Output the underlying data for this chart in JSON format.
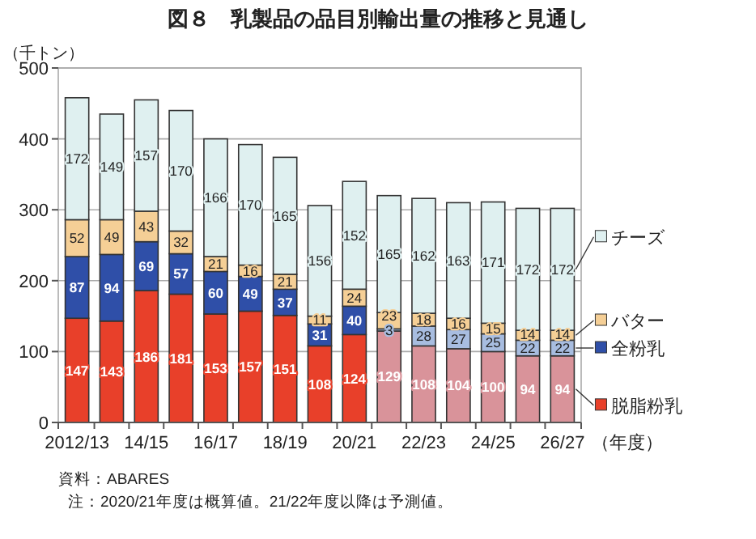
{
  "chart_data": {
    "type": "bar",
    "stacked": true,
    "title": "図８　乳製品の品目別輸出量の推移と見通し",
    "ylabel": "（千トン）",
    "xlabel": "（年度）",
    "categories": [
      "2012/13",
      null,
      "14/15",
      null,
      "16/17",
      null,
      "18/19",
      null,
      "20/21",
      null,
      "22/23",
      null,
      "24/25",
      null,
      "26/27"
    ],
    "series": [
      {
        "name": "脱脂粉乳",
        "color": "#e8402a",
        "colors": [
          "#e8402a",
          "#e8402a",
          "#e8402a",
          "#e8402a",
          "#e8402a",
          "#e8402a",
          "#e8402a",
          "#e8402a",
          "#e8402a",
          "#d9939a",
          "#d9939a",
          "#d9939a",
          "#d9939a",
          "#d9939a",
          "#d9939a"
        ],
        "values": [
          147,
          143,
          186,
          181,
          153,
          157,
          151,
          108,
          124,
          129,
          108,
          104,
          100,
          94,
          94
        ]
      },
      {
        "name": "全粉乳",
        "color": "#2f4fa8",
        "colors": [
          "#2f4fa8",
          "#2f4fa8",
          "#2f4fa8",
          "#2f4fa8",
          "#2f4fa8",
          "#2f4fa8",
          "#2f4fa8",
          "#2f4fa8",
          "#2f4fa8",
          "#a8bde0",
          "#a8bde0",
          "#a8bde0",
          "#a8bde0",
          "#a8bde0",
          "#a8bde0"
        ],
        "values": [
          87,
          94,
          69,
          57,
          60,
          49,
          37,
          31,
          40,
          3,
          28,
          27,
          25,
          22,
          22
        ]
      },
      {
        "name": "バター",
        "color": "#f5cf96",
        "values": [
          52,
          49,
          43,
          32,
          21,
          16,
          21,
          11,
          24,
          23,
          18,
          16,
          15,
          14,
          14
        ]
      },
      {
        "name": "チーズ",
        "color": "#dff0f0",
        "values": [
          172,
          149,
          157,
          170,
          166,
          170,
          165,
          156,
          152,
          165,
          162,
          163,
          171,
          172,
          172
        ]
      }
    ],
    "ylim": [
      0,
      500
    ],
    "yticks": [
      0,
      100,
      200,
      300,
      400,
      500
    ],
    "grid": "y",
    "legend": "right",
    "data_labels": true,
    "annotations": [
      "資料：ABARES",
      "注：2020/21年度は概算値。21/22年度以降は予測値。"
    ]
  }
}
